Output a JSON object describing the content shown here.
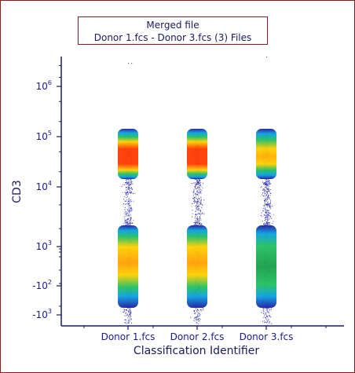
{
  "chart": {
    "title_line1": "Merged file",
    "title_line2": "Donor 1.fcs - Donor 3.fcs (3) Files"
  },
  "chart_data": {
    "type": "scatter",
    "subtype": "density-dot-plot",
    "xlabel": "Classification Identifier",
    "ylabel": "CD3",
    "yscale": "biexponential",
    "ylim": [
      -2000,
      10000000
    ],
    "categories": [
      "Donor 1.fcs",
      "Donor 2.fcs",
      "Donor 3.fcs"
    ],
    "y_tick_labels": [
      {
        "value": 1000000,
        "base": "10",
        "exp": "6"
      },
      {
        "value": 100000,
        "base": "10",
        "exp": "5"
      },
      {
        "value": 10000,
        "base": "10",
        "exp": "4"
      },
      {
        "value": 1000,
        "base": "10",
        "exp": "3"
      },
      {
        "value": -100,
        "base": "-10",
        "exp": "2"
      },
      {
        "value": -1000,
        "base": "-10",
        "exp": "3"
      }
    ],
    "populations": [
      {
        "category": "Donor 1.fcs",
        "center_y": 50000,
        "intensity": "high"
      },
      {
        "category": "Donor 1.fcs",
        "center_y": 700,
        "intensity": "medium"
      },
      {
        "category": "Donor 2.fcs",
        "center_y": 50000,
        "intensity": "high"
      },
      {
        "category": "Donor 2.fcs",
        "center_y": 900,
        "intensity": "medium"
      },
      {
        "category": "Donor 3.fcs",
        "center_y": 50000,
        "intensity": "medium"
      },
      {
        "category": "Donor 3.fcs",
        "center_y": 700,
        "intensity": "low"
      }
    ],
    "grid": false,
    "legend": "none"
  },
  "colors": {
    "frame_border": "#8c1d1d",
    "axis": "#1a1a5e",
    "label": "#1a1a8c",
    "density_low": "#1e1ea0",
    "density_high": "#ff3a00"
  }
}
